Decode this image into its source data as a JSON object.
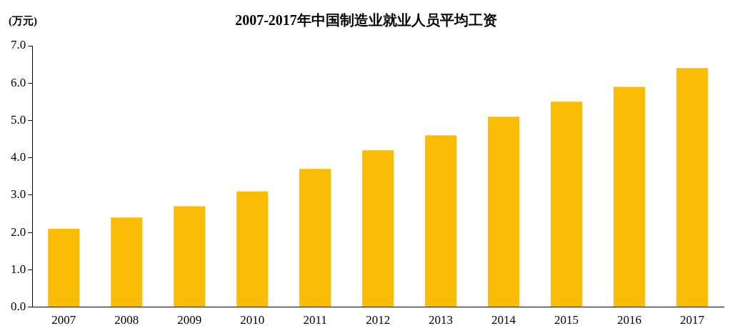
{
  "chart_data": {
    "type": "bar",
    "title": "2007-2017年中国制造业就业人员平均工资",
    "ylabel": "(万元)",
    "categories": [
      "2007",
      "2008",
      "2009",
      "2010",
      "2011",
      "2012",
      "2013",
      "2014",
      "2015",
      "2016",
      "2017"
    ],
    "values": [
      2.1,
      2.4,
      2.7,
      3.1,
      3.7,
      4.2,
      4.6,
      5.1,
      5.5,
      5.9,
      6.4
    ],
    "color": "#fbbc05",
    "ylim": [
      0,
      7
    ],
    "yticks": [
      {
        "value": 0,
        "label": "0.0"
      },
      {
        "value": 1,
        "label": "1.0"
      },
      {
        "value": 2,
        "label": "2.0"
      },
      {
        "value": 3,
        "label": "3.0"
      },
      {
        "value": 4,
        "label": "4.0"
      },
      {
        "value": 5,
        "label": "5.0"
      },
      {
        "value": 6,
        "label": "6.0"
      },
      {
        "value": 7,
        "label": "7.0"
      }
    ],
    "grid": false,
    "legend": false
  }
}
